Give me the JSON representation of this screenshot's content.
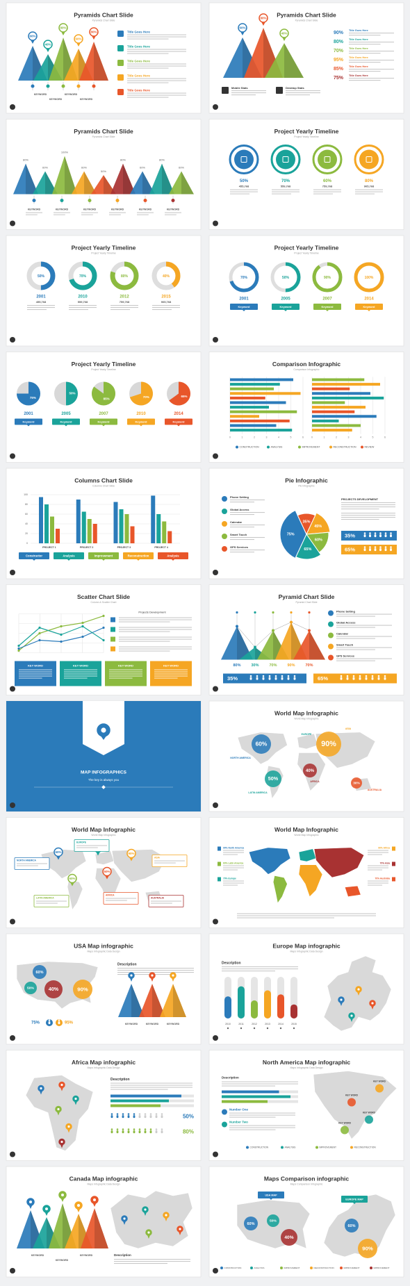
{
  "slides": [
    {
      "title": "Pyramids Chart Slide",
      "subtitle": "Pyramids Chart Slide",
      "percents": [
        "60%",
        "40%",
        "80%",
        "60%",
        "80%"
      ],
      "keywords": [
        "KEYWORD",
        "KEYWORD",
        "KEYWORD",
        "KEYWORD"
      ],
      "items": [
        "Title Goes Here",
        "Title Goes Here",
        "Title Goes Here",
        "Title Goes Here",
        "Title Goes Here"
      ]
    },
    {
      "title": "Pyramids Chart Slide",
      "subtitle": "Pyramids Chart Slide",
      "percents": [
        "60%",
        "80%",
        "40%"
      ],
      "stats": [
        "90%",
        "80%",
        "70%",
        "95%",
        "85%",
        "75%"
      ],
      "items": [
        "Title Goes Here",
        "Title Goes Here",
        "Title Goes Here",
        "Title Goes Here",
        "Title Goes Here",
        "Title Goes Here"
      ],
      "blocks": [
        "Mobile Stats",
        "Desktop Stats"
      ]
    },
    {
      "title": "Pyramids Chart Slide",
      "subtitle": "Pyramids Chart Slide",
      "percents": [
        "80%",
        "60%",
        "100%",
        "60%",
        "50%",
        "80%",
        "60%",
        "80%",
        "60%"
      ],
      "keywords": [
        "KEYWORD",
        "KEYWORD",
        "KEYWORD",
        "KEYWORD",
        "KEYWORD",
        "KEYWORD"
      ]
    },
    {
      "title": "Project Yearly Timeline",
      "subtitle": "Project Yearly Timeline",
      "percents": [
        "50%",
        "70%",
        "60%",
        "80%"
      ],
      "numbers": [
        "455,768",
        "559,768",
        "759,768",
        "905,768"
      ]
    },
    {
      "title": "Project Yearly Timeline",
      "subtitle": "Project Yearly Timeline",
      "percents": [
        "50%",
        "70%",
        "80%",
        "40%"
      ],
      "years": [
        "2001",
        "2010",
        "2012",
        "2015"
      ],
      "numbers": [
        "455,768",
        "559,768",
        "759,768",
        "905,768"
      ]
    },
    {
      "title": "Project Yearly Timeline",
      "subtitle": "Project Yearly Timeline",
      "percents": [
        "70%",
        "50%",
        "90%",
        "100%"
      ],
      "years": [
        "2001",
        "2005",
        "2007",
        "2014"
      ],
      "buttons": [
        "Keyword",
        "Keyword",
        "Keyword",
        "Keyword"
      ]
    },
    {
      "title": "Project Yearly Timeline",
      "subtitle": "Project Yearly Timeline",
      "percents": [
        "75%",
        "50%",
        "85%",
        "70%",
        "65%"
      ],
      "years": [
        "2001",
        "2005",
        "2007",
        "2010",
        "2014"
      ],
      "buttons": [
        "Keyword",
        "Keyword",
        "Keyword",
        "Keyword",
        "Keyword"
      ]
    },
    {
      "title": "Comparison Infographic",
      "subtitle": "Comparison Infographic",
      "axis": [
        "0",
        "1",
        "2",
        "3",
        "4",
        "5",
        "6"
      ],
      "left": [
        5.2,
        4.1,
        3.6,
        5.8,
        2.9,
        4.6,
        3.2,
        5.5,
        2.4,
        4.9,
        3.8,
        5.1
      ],
      "right": [
        4.3,
        5.6,
        3.1,
        4.8,
        5.9,
        2.7,
        4.4,
        3.5,
        5.3,
        2.2,
        4.0,
        3.3
      ],
      "legend": [
        "CONSTRUCTION",
        "ANALYSIS",
        "IMPROVEMENT",
        "RECONSTRUCTION",
        "REVIEW"
      ]
    },
    {
      "title": "Columns Chart Slide",
      "subtitle": "Columns Chart Slide",
      "yticks": [
        "100",
        "80",
        "60",
        "40",
        "20",
        "0"
      ],
      "values": [
        [
          95,
          80,
          55,
          30
        ],
        [
          90,
          65,
          50,
          40
        ],
        [
          85,
          70,
          60,
          35
        ],
        [
          98,
          60,
          45,
          25
        ]
      ],
      "projects": [
        "PROJECT 1",
        "PROJECT 2",
        "PROJECT 3",
        "PROJECT 4"
      ],
      "buttons": [
        "Constructor",
        "Analysis",
        "Improvement",
        "Reconstruction",
        "Analysis"
      ]
    },
    {
      "title": "Pie Infographic",
      "subtitle": "Pie Infographic",
      "pie": [
        "75%",
        "35%",
        "45%",
        "60%",
        "65%"
      ],
      "items": [
        "Phone Setting",
        "Global Access",
        "Calendar",
        "Smart Touch",
        "GPS Services"
      ],
      "heading": "PROJECTS DEVELOPMENT",
      "stats": [
        "35%",
        "65%"
      ]
    },
    {
      "title": "Scatter Chart Slide",
      "subtitle": "Column & Scatter Chart",
      "heading": "Projects Development",
      "keywords": [
        "KEY WORD",
        "KEY WORD",
        "KEY WORD",
        "KEY WORD"
      ]
    },
    {
      "title": "Pyramid Chart Slide",
      "subtitle": "Pyramid Chart Slide",
      "percents": [
        "80%",
        "30%",
        "70%",
        "90%",
        "70%"
      ],
      "items": [
        "Phone Setting",
        "Global Access",
        "Calendar",
        "Smart Touch",
        "GPS Services"
      ],
      "stats": [
        "35%",
        "65%"
      ]
    },
    {
      "title": "MAP INFOGRAPHICS",
      "subtitle": "The key is always you"
    },
    {
      "title": "World Map Infographic",
      "subtitle": "World Map Infographic",
      "bubbles": [
        "60%",
        "90%",
        "50%",
        "40%",
        "30%"
      ],
      "regions": [
        "NORTH AMERICA",
        "EUROPE",
        "ASIA",
        "LATIN AMERICA",
        "AFRICA",
        "AUSTRALIA"
      ]
    },
    {
      "title": "World Map Infographic",
      "subtitle": "World Map Infographic",
      "percents": [
        "60%",
        "70%",
        "90%",
        "60%",
        "50%"
      ],
      "regions": [
        "NORTH AMERICA",
        "EUROPE",
        "ASIA",
        "LATIN AMERICA",
        "AFRICA",
        "AUSTRALIA"
      ]
    },
    {
      "title": "World Map Infographic",
      "subtitle": "World Map Infographic",
      "left": [
        "90% North America",
        "60% Latin America",
        "70% Europe"
      ],
      "right": [
        "90% Africa",
        "70% Asia",
        "70% Australia"
      ]
    },
    {
      "title": "USA Map infographic",
      "subtitle": "Maps Infographic Data Design",
      "bubbles": [
        "60%",
        "50%",
        "40%",
        "90%"
      ],
      "stats": [
        "75%",
        "95%"
      ],
      "heading": "Description",
      "keywords": [
        "KEYWORD",
        "KEYWORD",
        "KEYWORD"
      ]
    },
    {
      "title": "Europe Map infographic",
      "subtitle": "Maps Infographic Data Design",
      "heading": "Description",
      "values": [
        55,
        80,
        45,
        70,
        60,
        35
      ],
      "years": [
        "2010",
        "2011",
        "2012",
        "2013",
        "2014",
        "2015"
      ]
    },
    {
      "title": "Africa Map infographic",
      "subtitle": "Maps Infographic Data Design",
      "heading": "Description",
      "values": [
        85,
        70,
        60
      ],
      "stats": [
        "50%",
        "80%"
      ]
    },
    {
      "title": "North America Map infographic",
      "subtitle": "Maps Infographic Data Design",
      "heading": "Description",
      "values": [
        75,
        90,
        60
      ],
      "items": [
        "Number One",
        "Number Two"
      ],
      "keywords": [
        "KEY WORD",
        "KEY WORD",
        "KEY WORD",
        "KEY WORD"
      ],
      "legend": [
        "CONSTRUCTION",
        "ANALYSIS",
        "IMPROVEMENT",
        "RECONSTRUCTION"
      ]
    },
    {
      "title": "Canada Map infographic",
      "subtitle": "Maps Infographic Data Design",
      "heading": "Description",
      "keywords": [
        "KEYWORD",
        "KEYWORD",
        "KEYWORD"
      ]
    },
    {
      "title": "Maps Comparison infographic",
      "subtitle": "Maps Comparison Infographic",
      "labels": [
        "USA MAP",
        "EUROPE MAP"
      ],
      "bubbles": [
        "60%",
        "50%",
        "40%",
        "60%",
        "90%"
      ],
      "legend": [
        "CONSTRUCTION",
        "ANALYSIS",
        "IMPROVEMENT",
        "RECONSTRUCTION",
        "IMPROVEMENT",
        "IMPROVEMENT"
      ]
    }
  ]
}
